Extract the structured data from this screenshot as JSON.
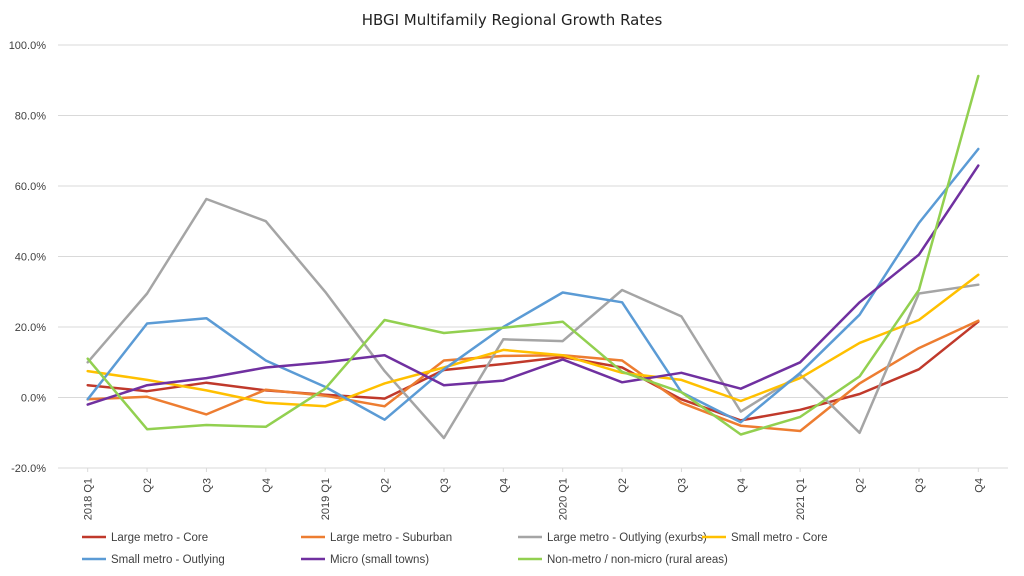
{
  "chart_data": {
    "type": "line",
    "title": "HBGI Multifamily Regional Growth Rates",
    "xlabel": "",
    "ylabel": "",
    "ylim": [
      -20,
      100
    ],
    "yticks": [
      "100.0%",
      "80.0%",
      "60.0%",
      "40.0%",
      "20.0%",
      "0.0%",
      "-20.0%"
    ],
    "categories": [
      "2018 Q1",
      "Q2",
      "Q3",
      "Q4",
      "2019 Q1",
      "Q2",
      "Q3",
      "Q4",
      "2020 Q1",
      "Q2",
      "Q3",
      "Q4",
      "2021 Q1",
      "Q2",
      "Q3",
      "Q4"
    ],
    "grid": "horizontal",
    "legend_position": "bottom",
    "series": [
      {
        "name": "Large metro - Core",
        "color": "#c0392b",
        "values": [
          3.5,
          1.8,
          4.2,
          2.0,
          0.8,
          -0.3,
          7.8,
          9.5,
          11.5,
          8.5,
          -0.5,
          -6.5,
          -3.5,
          1.0,
          8.0,
          21.5
        ]
      },
      {
        "name": "Large metro - Suburban",
        "color": "#ed7d31",
        "values": [
          -0.5,
          0.2,
          -4.8,
          2.2,
          0.5,
          -2.5,
          10.5,
          11.8,
          12.0,
          10.5,
          -1.5,
          -8.0,
          -9.5,
          4.0,
          14.0,
          21.8
        ]
      },
      {
        "name": "Large metro - Outlying (exurbs)",
        "color": "#a5a5a5",
        "values": [
          10.0,
          29.5,
          56.3,
          50.0,
          30.0,
          7.5,
          -11.5,
          16.5,
          16.0,
          30.5,
          23.0,
          -4.0,
          6.5,
          -10.0,
          29.5,
          32.0
        ]
      },
      {
        "name": "Small metro - Core",
        "color": "#ffc000",
        "values": [
          7.5,
          5.0,
          2.0,
          -1.5,
          -2.5,
          4.0,
          8.5,
          13.5,
          12.0,
          7.0,
          5.0,
          -1.0,
          5.5,
          15.5,
          22.0,
          34.8
        ]
      },
      {
        "name": "Small metro - Outlying",
        "color": "#5b9bd5",
        "values": [
          -0.5,
          21.0,
          22.5,
          10.5,
          3.0,
          -6.3,
          8.0,
          20.0,
          29.8,
          27.0,
          1.5,
          -7.0,
          7.0,
          23.5,
          49.5,
          70.5
        ]
      },
      {
        "name": "Micro (small towns)",
        "color": "#7030a0",
        "values": [
          -2.0,
          3.5,
          5.5,
          8.5,
          10.0,
          12.0,
          3.5,
          4.8,
          10.8,
          4.3,
          7.0,
          2.5,
          10.0,
          27.0,
          40.5,
          65.8
        ]
      },
      {
        "name": "Non-metro / non-micro (rural areas)",
        "color": "#92d050",
        "values": [
          11.0,
          -9.0,
          -7.8,
          -8.3,
          2.5,
          22.0,
          18.3,
          19.8,
          21.5,
          7.3,
          1.5,
          -10.5,
          -5.5,
          6.0,
          30.5,
          91.2
        ]
      }
    ]
  }
}
